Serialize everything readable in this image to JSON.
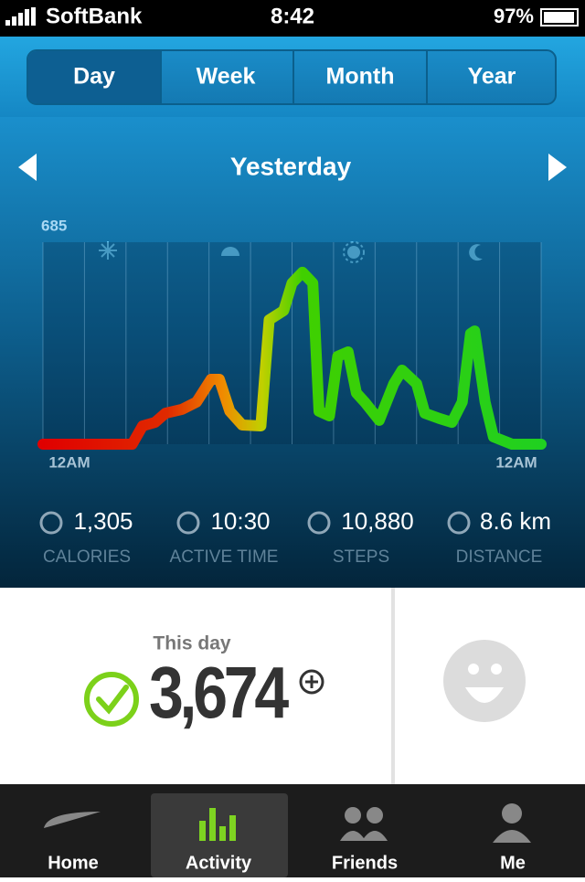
{
  "status_bar": {
    "carrier": "SoftBank",
    "time": "8:42",
    "battery": "97%"
  },
  "tabs": [
    "Day",
    "Week",
    "Month",
    "Year"
  ],
  "period": "Yesterday",
  "chart": {
    "type": "line",
    "x": [
      0,
      4.3,
      4.8,
      5.4,
      5.9,
      6.7,
      7.4,
      8.1,
      8.5,
      9.0,
      9.6,
      10.5,
      10.9,
      11.6,
      12.0,
      12.5,
      13.0,
      13.3,
      13.8,
      14.2,
      14.7,
      15.1,
      15.5,
      16.2,
      16.9,
      17.3,
      18.0,
      18.4,
      19.1,
      19.7,
      20.2,
      20.6,
      20.8,
      21.3,
      21.7,
      22.6,
      24
    ],
    "values": [
      0,
      0,
      62,
      74,
      105,
      118,
      143,
      220,
      220,
      112,
      65,
      62,
      422,
      453,
      546,
      583,
      546,
      112,
      96,
      298,
      313,
      174,
      143,
      81,
      205,
      251,
      205,
      105,
      87,
      74,
      143,
      375,
      384,
      143,
      25,
      0,
      0
    ],
    "xlim": [
      0,
      24
    ],
    "ylim": [
      0,
      685
    ],
    "yticks": [
      685
    ],
    "xticks": [
      {
        "value": 0,
        "label": "12AM"
      },
      {
        "value": 2,
        "label": null
      },
      {
        "value": 4,
        "label": null
      },
      {
        "value": 6,
        "label": null
      },
      {
        "value": 8,
        "label": null
      },
      {
        "value": 10,
        "label": null
      },
      {
        "value": 12,
        "label": null
      },
      {
        "value": 14,
        "label": null
      },
      {
        "value": 16,
        "label": null
      },
      {
        "value": 18,
        "label": null
      },
      {
        "value": 20,
        "label": null
      },
      {
        "value": 22,
        "label": null
      },
      {
        "value": 24,
        "label": "12AM"
      }
    ]
  },
  "stats": [
    {
      "value": "1,305",
      "label": "CALORIES"
    },
    {
      "value": "10:30",
      "label": "ACTIVE TIME"
    },
    {
      "value": "10,880",
      "label": "STEPS"
    },
    {
      "value": "8.6 km",
      "label": "DISTANCE"
    }
  ],
  "summary": {
    "caption": "This day",
    "points": "3,674"
  },
  "nav": [
    "Home",
    "Activity",
    "Friends",
    "Me"
  ]
}
